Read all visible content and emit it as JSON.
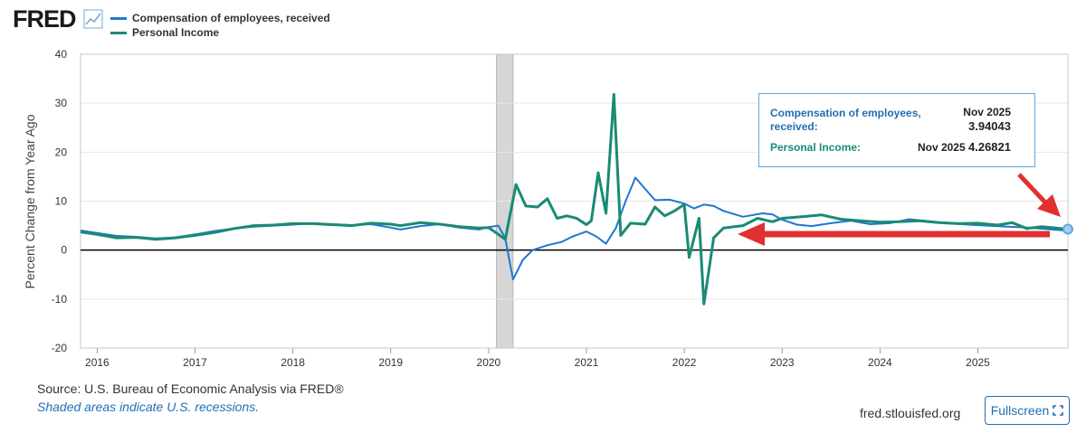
{
  "brand": {
    "logo_text": "FRED",
    "logo_icon": "chart-trend-icon"
  },
  "legend": [
    {
      "label": "Compensation of employees, received",
      "color": "#1f77d0"
    },
    {
      "label": "Personal Income",
      "color": "#1a8a74"
    }
  ],
  "source_text": "Source: U.S. Bureau of Economic Analysis via FRED®",
  "recession_note": "Shaded areas indicate U.S. recessions.",
  "site": "fred.stlouisfed.org",
  "fullscreen_label": "Fullscreen",
  "tooltip": {
    "series1_name": "Compensation of employees, received:",
    "series1_date": "Nov 2025",
    "series1_value": "3.94043",
    "series2_name": "Personal Income:",
    "series2_date": "Nov 2025",
    "series2_value": "4.26821"
  },
  "colors": {
    "compensation": "#1f77d0",
    "personal_income": "#1a8a74",
    "annotation": "#e03030",
    "recession": "#d6d6d6"
  },
  "chart_data": {
    "type": "line",
    "title": "",
    "xlabel": "",
    "ylabel": "Percent Change from Year Ago",
    "xlim": [
      2015.83,
      2025.92
    ],
    "ylim": [
      -20,
      40
    ],
    "y_ticks": [
      -20,
      -10,
      0,
      10,
      20,
      30,
      40
    ],
    "x_ticks": [
      2016,
      2017,
      2018,
      2019,
      2020,
      2021,
      2022,
      2023,
      2024,
      2025
    ],
    "grid": true,
    "legend_position": "top-left",
    "recessions": [
      [
        2020.08,
        2020.25
      ]
    ],
    "series": [
      {
        "name": "Compensation of employees, received",
        "color": "#1f77d0",
        "points": [
          [
            2015.83,
            4.0
          ],
          [
            2016.0,
            3.5
          ],
          [
            2016.2,
            2.9
          ],
          [
            2016.4,
            2.7
          ],
          [
            2016.6,
            2.4
          ],
          [
            2016.8,
            2.6
          ],
          [
            2017.0,
            3.2
          ],
          [
            2017.2,
            3.9
          ],
          [
            2017.4,
            4.4
          ],
          [
            2017.6,
            4.8
          ],
          [
            2017.8,
            5.0
          ],
          [
            2018.0,
            5.2
          ],
          [
            2018.2,
            5.5
          ],
          [
            2018.4,
            5.3
          ],
          [
            2018.6,
            5.1
          ],
          [
            2018.8,
            5.3
          ],
          [
            2019.0,
            4.6
          ],
          [
            2019.1,
            4.2
          ],
          [
            2019.3,
            4.9
          ],
          [
            2019.5,
            5.3
          ],
          [
            2019.7,
            4.6
          ],
          [
            2019.9,
            4.2
          ],
          [
            2020.0,
            4.7
          ],
          [
            2020.1,
            5.0
          ],
          [
            2020.17,
            2.4
          ],
          [
            2020.25,
            -6.0
          ],
          [
            2020.35,
            -2.0
          ],
          [
            2020.45,
            0.0
          ],
          [
            2020.6,
            1.0
          ],
          [
            2020.75,
            1.7
          ],
          [
            2020.85,
            2.7
          ],
          [
            2021.0,
            3.8
          ],
          [
            2021.1,
            2.8
          ],
          [
            2021.2,
            1.3
          ],
          [
            2021.3,
            4.5
          ],
          [
            2021.4,
            10.0
          ],
          [
            2021.5,
            14.8
          ],
          [
            2021.6,
            12.5
          ],
          [
            2021.7,
            10.2
          ],
          [
            2021.85,
            10.3
          ],
          [
            2022.0,
            9.5
          ],
          [
            2022.1,
            8.5
          ],
          [
            2022.2,
            9.3
          ],
          [
            2022.3,
            9.0
          ],
          [
            2022.4,
            8.0
          ],
          [
            2022.6,
            6.8
          ],
          [
            2022.8,
            7.5
          ],
          [
            2022.9,
            7.3
          ],
          [
            2023.0,
            6.2
          ],
          [
            2023.15,
            5.2
          ],
          [
            2023.3,
            4.9
          ],
          [
            2023.5,
            5.5
          ],
          [
            2023.7,
            6.0
          ],
          [
            2023.9,
            5.3
          ],
          [
            2024.1,
            5.5
          ],
          [
            2024.3,
            6.3
          ],
          [
            2024.5,
            5.9
          ],
          [
            2024.7,
            5.5
          ],
          [
            2024.9,
            5.2
          ],
          [
            2025.1,
            5.0
          ],
          [
            2025.3,
            4.8
          ],
          [
            2025.5,
            4.6
          ],
          [
            2025.7,
            4.3
          ],
          [
            2025.92,
            3.94
          ]
        ]
      },
      {
        "name": "Personal Income",
        "color": "#1a8a74",
        "points": [
          [
            2015.83,
            3.7
          ],
          [
            2016.0,
            3.2
          ],
          [
            2016.2,
            2.5
          ],
          [
            2016.4,
            2.6
          ],
          [
            2016.6,
            2.2
          ],
          [
            2016.8,
            2.5
          ],
          [
            2017.0,
            3.0
          ],
          [
            2017.2,
            3.6
          ],
          [
            2017.4,
            4.4
          ],
          [
            2017.6,
            5.0
          ],
          [
            2017.8,
            5.1
          ],
          [
            2018.0,
            5.4
          ],
          [
            2018.2,
            5.4
          ],
          [
            2018.4,
            5.2
          ],
          [
            2018.6,
            5.0
          ],
          [
            2018.8,
            5.5
          ],
          [
            2019.0,
            5.3
          ],
          [
            2019.1,
            5.0
          ],
          [
            2019.3,
            5.6
          ],
          [
            2019.5,
            5.3
          ],
          [
            2019.7,
            4.8
          ],
          [
            2019.9,
            4.5
          ],
          [
            2020.0,
            4.6
          ],
          [
            2020.1,
            3.2
          ],
          [
            2020.17,
            2.2
          ],
          [
            2020.28,
            13.4
          ],
          [
            2020.38,
            9.0
          ],
          [
            2020.5,
            8.8
          ],
          [
            2020.6,
            10.5
          ],
          [
            2020.7,
            6.5
          ],
          [
            2020.8,
            7.0
          ],
          [
            2020.9,
            6.5
          ],
          [
            2021.0,
            5.2
          ],
          [
            2021.05,
            6.0
          ],
          [
            2021.12,
            15.8
          ],
          [
            2021.2,
            7.5
          ],
          [
            2021.28,
            31.8
          ],
          [
            2021.35,
            3.0
          ],
          [
            2021.45,
            5.5
          ],
          [
            2021.6,
            5.3
          ],
          [
            2021.7,
            8.8
          ],
          [
            2021.8,
            7.0
          ],
          [
            2021.9,
            8.0
          ],
          [
            2022.0,
            9.3
          ],
          [
            2022.05,
            -1.5
          ],
          [
            2022.15,
            6.5
          ],
          [
            2022.2,
            -11.0
          ],
          [
            2022.3,
            2.5
          ],
          [
            2022.4,
            4.5
          ],
          [
            2022.6,
            5.0
          ],
          [
            2022.75,
            6.5
          ],
          [
            2022.9,
            5.8
          ],
          [
            2023.0,
            6.5
          ],
          [
            2023.2,
            6.8
          ],
          [
            2023.4,
            7.2
          ],
          [
            2023.6,
            6.3
          ],
          [
            2023.8,
            6.0
          ],
          [
            2024.0,
            5.7
          ],
          [
            2024.2,
            5.8
          ],
          [
            2024.4,
            6.0
          ],
          [
            2024.6,
            5.6
          ],
          [
            2024.8,
            5.4
          ],
          [
            2025.0,
            5.5
          ],
          [
            2025.2,
            5.1
          ],
          [
            2025.35,
            5.6
          ],
          [
            2025.5,
            4.4
          ],
          [
            2025.65,
            4.8
          ],
          [
            2025.92,
            4.27
          ]
        ]
      }
    ]
  }
}
